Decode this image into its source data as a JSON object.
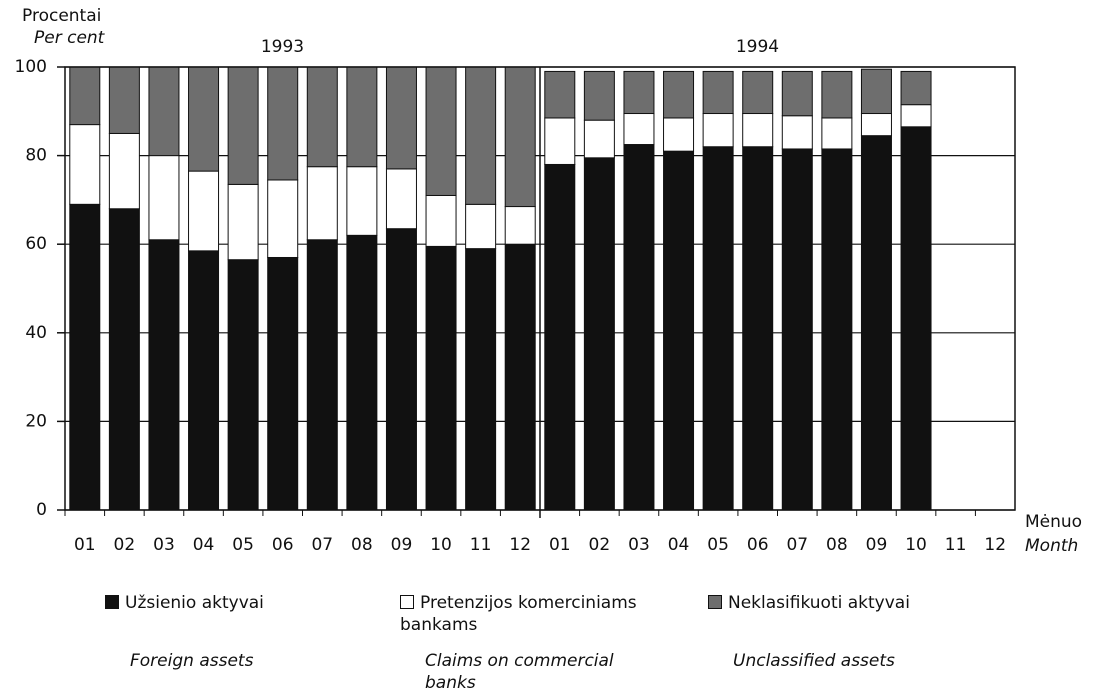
{
  "chart_data": {
    "type": "stacked_bar",
    "y_label": [
      "Procentai",
      "Per cent"
    ],
    "x_label": [
      "Mėnuo",
      "Month"
    ],
    "groups": [
      "1993",
      "1994"
    ],
    "categories": [
      "01",
      "02",
      "03",
      "04",
      "05",
      "06",
      "07",
      "08",
      "09",
      "10",
      "11",
      "12",
      "01",
      "02",
      "03",
      "04",
      "05",
      "06",
      "07",
      "08",
      "09",
      "10",
      "11",
      "12"
    ],
    "series": [
      {
        "name": "Užsienio aktyvai",
        "name_en": "Foreign assets",
        "color": "#111111",
        "values": [
          69,
          68,
          61,
          58.5,
          56.5,
          57,
          61,
          62,
          63.5,
          59.5,
          59,
          60,
          78,
          79.5,
          82.5,
          81,
          82,
          82,
          81.5,
          81.5,
          84.5,
          86.5,
          null,
          null
        ]
      },
      {
        "name": "Pretenzijos komerciniams bankams",
        "name_en": "Claims on commercial banks",
        "color": "#ffffff",
        "values": [
          18,
          17,
          19,
          18,
          17,
          17.5,
          16.5,
          15.5,
          13.5,
          11.5,
          10,
          8.5,
          10.5,
          8.5,
          7,
          7.5,
          7.5,
          7.5,
          7.5,
          7,
          5,
          5,
          null,
          null
        ]
      },
      {
        "name": "Neklasifikuoti aktyvai",
        "name_en": "Unclassified assets",
        "color": "#6e6e6e",
        "values": [
          13,
          15,
          20,
          23.5,
          26.5,
          25.5,
          22.5,
          22.5,
          23,
          29,
          31,
          31.5,
          10.5,
          11,
          9.5,
          10.5,
          9.5,
          9.5,
          10,
          10.5,
          10,
          7.5,
          null,
          null
        ]
      }
    ],
    "ylim": [
      0,
      100
    ],
    "yticks": [
      0,
      20,
      40,
      60,
      80,
      100
    ],
    "grid": true
  }
}
